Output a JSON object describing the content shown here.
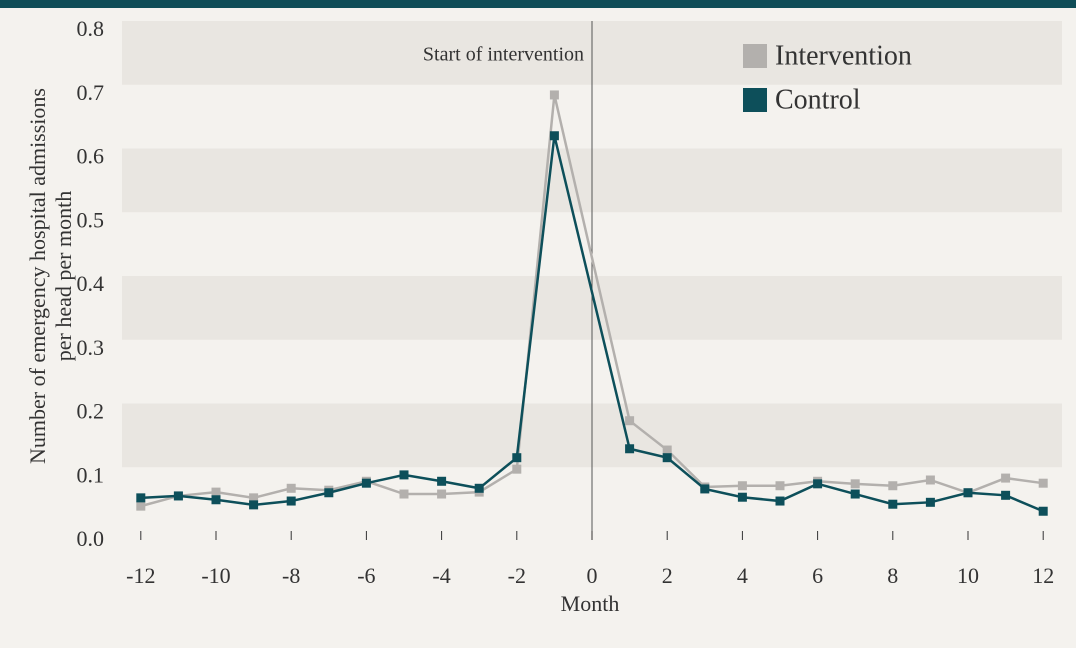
{
  "chart_data": {
    "type": "line",
    "annotation": "Start of intervention",
    "xlabel": "Month",
    "ylabel": [
      "Number of emergency hospital admissions",
      "per head per month"
    ],
    "x": [
      -12,
      -11,
      -10,
      -9,
      -8,
      -7,
      -6,
      -5,
      -4,
      -3,
      -2,
      -1,
      1,
      2,
      3,
      4,
      5,
      6,
      7,
      8,
      9,
      10,
      11,
      12
    ],
    "series": [
      {
        "name": "Intervention",
        "color": "#b3b0ad",
        "values": [
          0.039,
          0.055,
          0.061,
          0.052,
          0.067,
          0.064,
          0.078,
          0.058,
          0.058,
          0.061,
          0.097,
          0.684,
          0.173,
          0.127,
          0.069,
          0.071,
          0.071,
          0.078,
          0.074,
          0.071,
          0.08,
          0.06,
          0.083,
          0.075
        ]
      },
      {
        "name": "Control",
        "color": "#0d4f5a",
        "values": [
          0.052,
          0.055,
          0.049,
          0.041,
          0.047,
          0.06,
          0.075,
          0.088,
          0.078,
          0.067,
          0.115,
          0.62,
          0.129,
          0.115,
          0.066,
          0.053,
          0.047,
          0.074,
          0.058,
          0.042,
          0.045,
          0.06,
          0.056,
          0.031
        ]
      }
    ],
    "xlim": [
      -12.5,
      12.5
    ],
    "xticks": [
      -12,
      -10,
      -8,
      -6,
      -4,
      -2,
      0,
      2,
      4,
      6,
      8,
      10,
      12
    ],
    "ylim": [
      0,
      0.8
    ],
    "yticks": [
      {
        "value": 0,
        "label": "0.0"
      },
      0.1,
      0.2,
      0.3,
      0.4,
      0.5,
      0.6,
      0.7,
      0.8
    ],
    "grid": "bands",
    "legend": "upper right"
  }
}
